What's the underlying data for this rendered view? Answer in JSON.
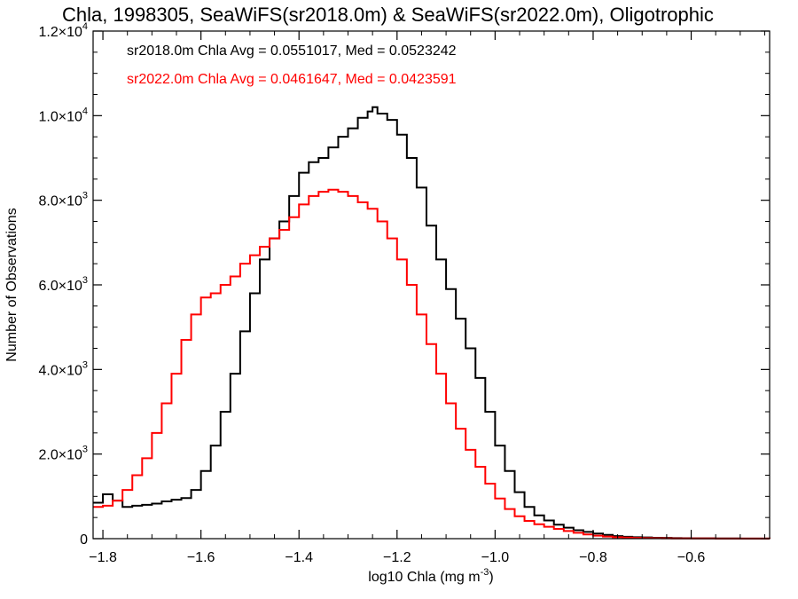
{
  "chart_data": {
    "type": "line",
    "title": "Chla, 1998305, SeaWiFS(sr2018.0m) & SeaWiFS(sr2022.0m), Oligotrophic",
    "xlabel": "log10 Chla (mg m",
    "xlabel_sup": "-3",
    "xlabel_tail": ")",
    "ylabel": "Number of Observations",
    "xlim": [
      -1.82,
      -0.44
    ],
    "ylim": [
      0,
      12000
    ],
    "x_ticks": [
      -1.8,
      -1.6,
      -1.4,
      -1.2,
      -1.0,
      -0.8,
      -0.6
    ],
    "x_tick_labels": [
      "−1.8",
      "−1.6",
      "−1.4",
      "−1.2",
      "−1.0",
      "−0.8",
      "−0.6"
    ],
    "y_ticks": [
      {
        "value": 0,
        "mantissa": "0",
        "exp": ""
      },
      {
        "value": 2000,
        "mantissa": "2.0×10",
        "exp": "3"
      },
      {
        "value": 4000,
        "mantissa": "4.0×10",
        "exp": "3"
      },
      {
        "value": 6000,
        "mantissa": "6.0×10",
        "exp": "3"
      },
      {
        "value": 8000,
        "mantissa": "8.0×10",
        "exp": "3"
      },
      {
        "value": 10000,
        "mantissa": "1.0×10",
        "exp": "4"
      },
      {
        "value": 12000,
        "mantissa": "1.2×10",
        "exp": "4"
      }
    ],
    "grid": false,
    "annotations": [
      {
        "text": "sr2018.0m Chla Avg = 0.0551017, Med = 0.0523242",
        "color": "#000000"
      },
      {
        "text": "sr2022.0m Chla Avg = 0.0461647, Med = 0.0423591",
        "color": "#ff0000"
      }
    ],
    "series": [
      {
        "color": "#000000",
        "x": [
          -1.82,
          -1.8,
          -1.78,
          -1.76,
          -1.74,
          -1.72,
          -1.7,
          -1.68,
          -1.66,
          -1.64,
          -1.62,
          -1.6,
          -1.58,
          -1.56,
          -1.54,
          -1.52,
          -1.5,
          -1.48,
          -1.46,
          -1.44,
          -1.42,
          -1.4,
          -1.38,
          -1.36,
          -1.34,
          -1.32,
          -1.3,
          -1.28,
          -1.26,
          -1.25,
          -1.24,
          -1.22,
          -1.2,
          -1.18,
          -1.16,
          -1.14,
          -1.12,
          -1.1,
          -1.08,
          -1.06,
          -1.04,
          -1.02,
          -1.0,
          -0.98,
          -0.96,
          -0.94,
          -0.92,
          -0.9,
          -0.88,
          -0.86,
          -0.84,
          -0.82,
          -0.8,
          -0.78,
          -0.76,
          -0.74,
          -0.72,
          -0.7,
          -0.68,
          -0.66,
          -0.64,
          -0.62,
          -0.6,
          -0.55,
          -0.5,
          -0.44
        ],
        "y": [
          850,
          1050,
          900,
          750,
          780,
          800,
          830,
          880,
          920,
          960,
          1150,
          1600,
          2200,
          3000,
          3900,
          4900,
          5800,
          6600,
          7100,
          7500,
          8100,
          8650,
          8900,
          9000,
          9250,
          9500,
          9700,
          9950,
          10100,
          10200,
          10050,
          9900,
          9550,
          9000,
          8300,
          7400,
          6600,
          5900,
          5200,
          4500,
          3800,
          3000,
          2200,
          1600,
          1100,
          750,
          550,
          430,
          330,
          260,
          200,
          160,
          120,
          90,
          60,
          45,
          35,
          28,
          22,
          18,
          14,
          10,
          8,
          5,
          3,
          2
        ]
      },
      {
        "color": "#ff0000",
        "x": [
          -1.82,
          -1.8,
          -1.78,
          -1.76,
          -1.74,
          -1.72,
          -1.7,
          -1.68,
          -1.66,
          -1.64,
          -1.62,
          -1.6,
          -1.58,
          -1.56,
          -1.54,
          -1.52,
          -1.5,
          -1.48,
          -1.46,
          -1.44,
          -1.42,
          -1.4,
          -1.38,
          -1.36,
          -1.34,
          -1.32,
          -1.3,
          -1.28,
          -1.26,
          -1.24,
          -1.22,
          -1.2,
          -1.18,
          -1.16,
          -1.14,
          -1.12,
          -1.1,
          -1.08,
          -1.06,
          -1.04,
          -1.02,
          -1.0,
          -0.98,
          -0.96,
          -0.94,
          -0.92,
          -0.9,
          -0.88,
          -0.86,
          -0.84,
          -0.82,
          -0.8,
          -0.78,
          -0.76,
          -0.74,
          -0.72,
          -0.7,
          -0.68,
          -0.66,
          -0.64,
          -0.62,
          -0.6,
          -0.55,
          -0.5,
          -0.44
        ],
        "y": [
          750,
          780,
          900,
          1150,
          1500,
          1900,
          2500,
          3200,
          3900,
          4700,
          5300,
          5700,
          5800,
          6000,
          6200,
          6500,
          6700,
          6900,
          7100,
          7300,
          7600,
          7900,
          8100,
          8200,
          8250,
          8200,
          8100,
          7950,
          7800,
          7500,
          7100,
          6600,
          6000,
          5300,
          4600,
          3900,
          3200,
          2600,
          2100,
          1700,
          1300,
          950,
          700,
          530,
          420,
          340,
          280,
          230,
          180,
          140,
          100,
          70,
          50,
          35,
          25,
          18,
          14,
          10,
          8,
          6,
          5,
          4,
          3,
          2,
          1
        ]
      }
    ]
  }
}
